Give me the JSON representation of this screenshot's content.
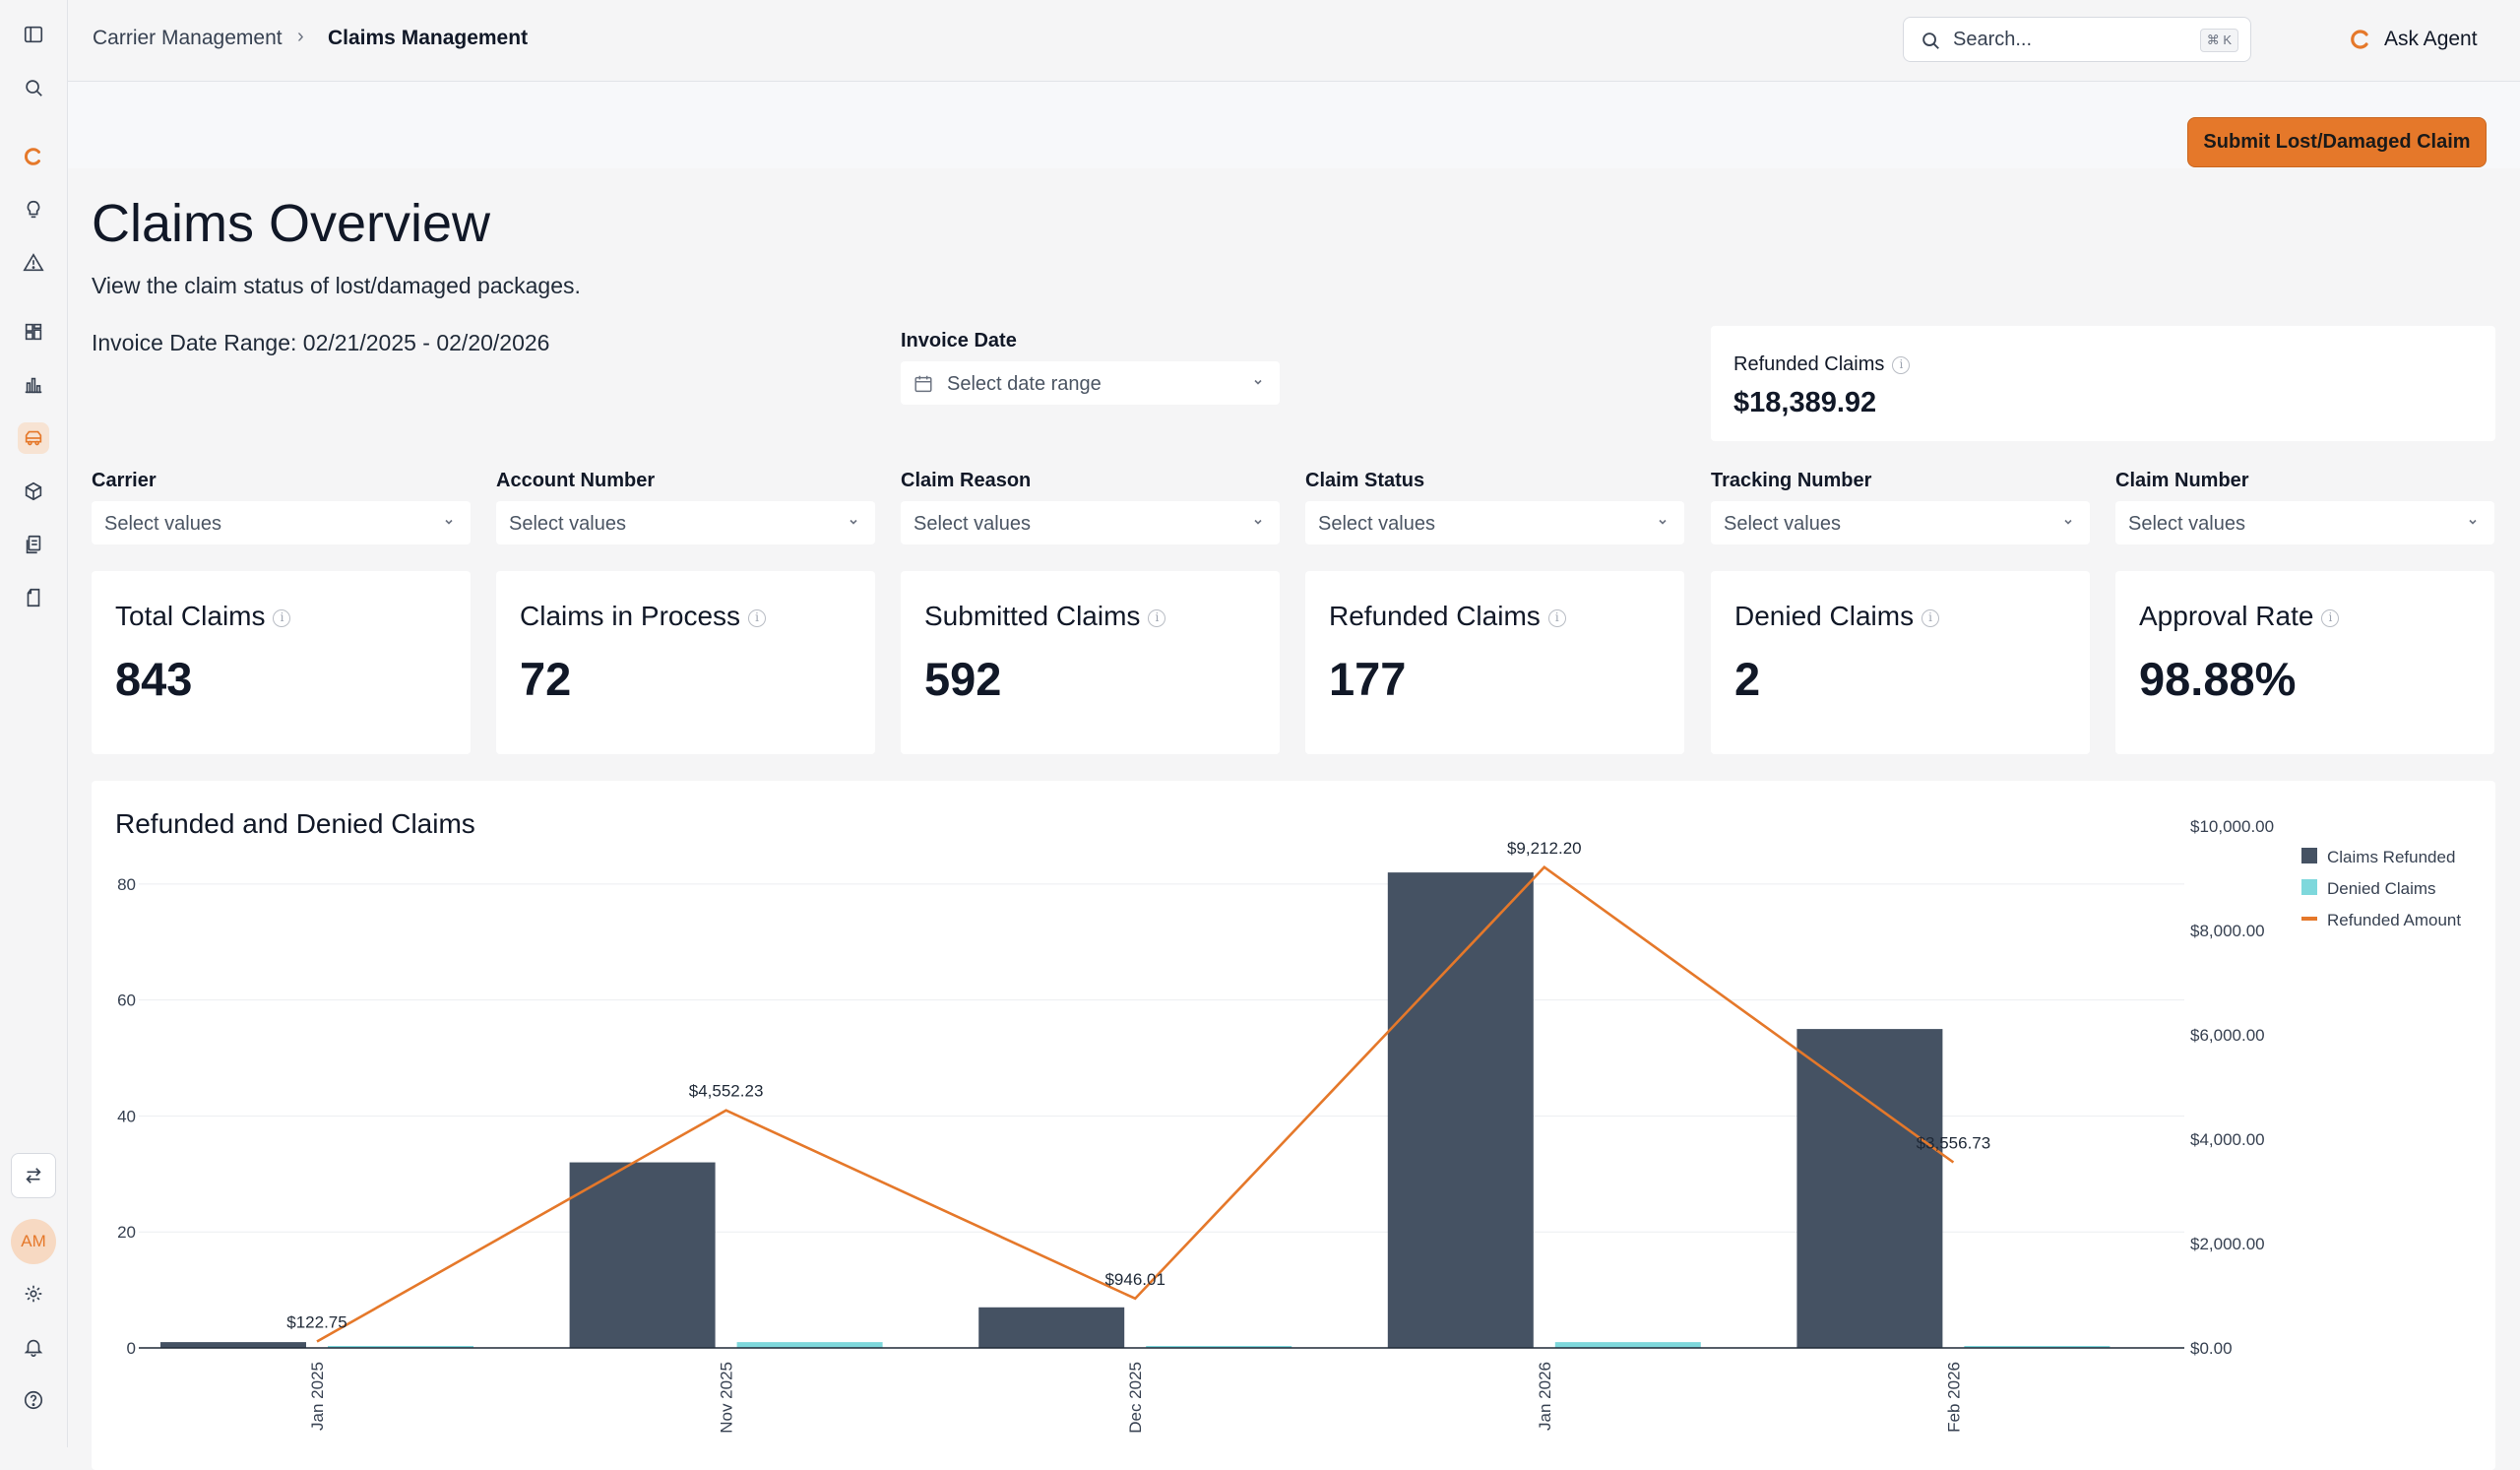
{
  "sidebar": {
    "items": [
      {
        "icon": "panel-toggle-icon"
      },
      {
        "icon": "search-icon"
      },
      {
        "icon": "brand-logo-icon"
      },
      {
        "icon": "lightbulb-icon"
      },
      {
        "icon": "alert-triangle-icon"
      },
      {
        "icon": "dashboard-icon"
      },
      {
        "icon": "bar-chart-icon"
      },
      {
        "icon": "truck-icon",
        "active": true
      },
      {
        "icon": "package-icon"
      },
      {
        "icon": "documents-icon"
      },
      {
        "icon": "clipboard-icon"
      }
    ],
    "bottom": {
      "swap_icon": "swap-arrows-icon",
      "avatar_initials": "AM",
      "settings_icon": "gear-icon",
      "bell_icon": "bell-icon",
      "help_icon": "help-icon"
    }
  },
  "header": {
    "breadcrumb": [
      "Carrier Management",
      "Claims Management"
    ],
    "search_placeholder": "Search...",
    "search_shortcut": "⌘ K",
    "ask_agent_label": "Ask Agent"
  },
  "actions": {
    "submit_label": "Submit Lost/Damaged Claim"
  },
  "page": {
    "title": "Claims Overview",
    "subtitle": "View the claim status of lost/damaged packages.",
    "date_range_text": "Invoice Date Range: 02/21/2025 - 02/20/2026"
  },
  "invoice_date": {
    "label": "Invoice Date",
    "placeholder": "Select date range"
  },
  "refund_summary": {
    "label": "Refunded Claims",
    "value": "$18,389.92"
  },
  "filters": [
    {
      "label": "Carrier",
      "placeholder": "Select values"
    },
    {
      "label": "Account Number",
      "placeholder": "Select values"
    },
    {
      "label": "Claim Reason",
      "placeholder": "Select values"
    },
    {
      "label": "Claim Status",
      "placeholder": "Select values"
    },
    {
      "label": "Tracking Number",
      "placeholder": "Select values"
    },
    {
      "label": "Claim Number",
      "placeholder": "Select values"
    }
  ],
  "kpis": [
    {
      "label": "Total Claims",
      "value": "843"
    },
    {
      "label": "Claims in Process",
      "value": "72"
    },
    {
      "label": "Submitted Claims",
      "value": "592"
    },
    {
      "label": "Refunded Claims",
      "value": "177"
    },
    {
      "label": "Denied Claims",
      "value": "2"
    },
    {
      "label": "Approval Rate",
      "value": "98.88%"
    }
  ],
  "colors": {
    "accent": "#e5782a",
    "refunded_bar": "#455263",
    "denied_bar": "#7ed8dc",
    "amount_line": "#e5782a"
  },
  "chart_data": {
    "type": "bar",
    "title": "Refunded and Denied Claims",
    "categories": [
      "Jan 2025",
      "Nov 2025",
      "Dec 2025",
      "Jan 2026",
      "Feb 2026"
    ],
    "series": [
      {
        "name": "Claims Refunded",
        "kind": "bar",
        "axis": "left",
        "values": [
          1,
          32,
          7,
          82,
          55
        ]
      },
      {
        "name": "Denied Claims",
        "kind": "bar",
        "axis": "left",
        "values": [
          0,
          1,
          0,
          1,
          0
        ]
      },
      {
        "name": "Refunded Amount",
        "kind": "line",
        "axis": "right",
        "values": [
          122.75,
          4552.23,
          946.01,
          9212.2,
          3556.73
        ],
        "labels": [
          "$122.75",
          "$4,552.23",
          "$946.01",
          "$9,212.20",
          "$3,556.73"
        ]
      }
    ],
    "y_left": {
      "ticks": [
        0,
        20,
        40,
        60,
        80
      ],
      "range": [
        0,
        90
      ]
    },
    "y_right": {
      "ticks": [
        "$0.00",
        "$2,000.00",
        "$4,000.00",
        "$6,000.00",
        "$8,000.00",
        "$10,000.00"
      ],
      "range": [
        0,
        10000
      ]
    },
    "grid": true,
    "legend_position": "top-right"
  }
}
